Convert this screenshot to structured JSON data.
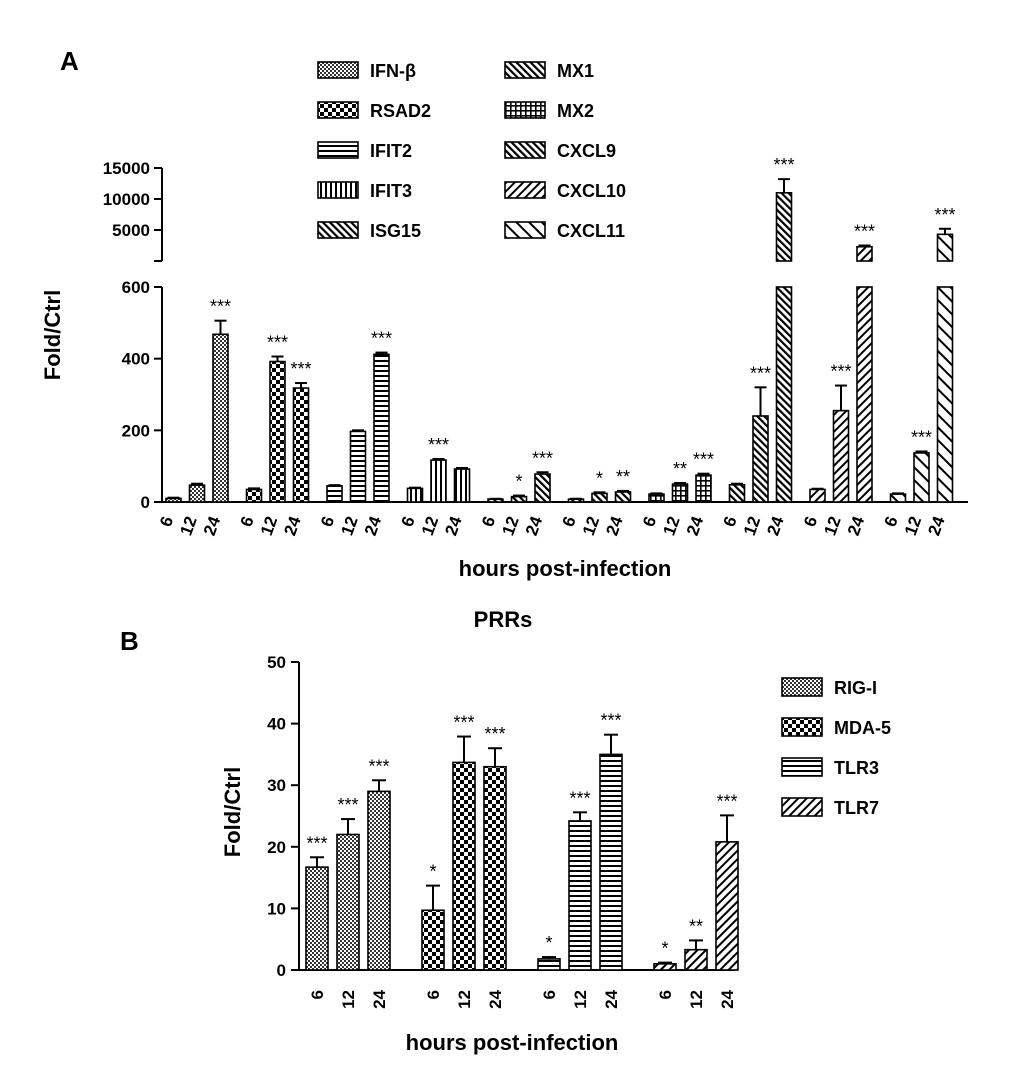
{
  "chart_data": [
    {
      "panel": "A",
      "type": "bar",
      "title": "",
      "xlabel": "hours post-infection",
      "ylabel": "Fold/Ctrl",
      "broken_axis": true,
      "ylim_lower": [
        0,
        600
      ],
      "yticks_lower": [
        0,
        200,
        400,
        600
      ],
      "ylim_upper": [
        0,
        15000
      ],
      "yticks_upper": [
        5000,
        10000,
        15000
      ],
      "timepoints": [
        "6",
        "12",
        "24"
      ],
      "legend_position": "top",
      "groups": [
        {
          "name": "IFN-β",
          "pattern": "checker",
          "values": [
            10,
            47,
            468
          ],
          "errors": [
            2,
            4,
            38
          ],
          "sig": [
            "",
            "",
            "***"
          ]
        },
        {
          "name": "RSAD2",
          "pattern": "bigcheck",
          "values": [
            35,
            392,
            318
          ],
          "errors": [
            3,
            14,
            14
          ],
          "sig": [
            "",
            "***",
            "***"
          ]
        },
        {
          "name": "IFIT2",
          "pattern": "hlines",
          "values": [
            45,
            197,
            412
          ],
          "errors": [
            2,
            3,
            5
          ],
          "sig": [
            "",
            "",
            "***"
          ]
        },
        {
          "name": "IFIT3",
          "pattern": "vlines",
          "values": [
            38,
            117,
            92
          ],
          "errors": [
            2,
            3,
            3
          ],
          "sig": [
            "",
            "***",
            ""
          ]
        },
        {
          "name": "ISG15",
          "pattern": "diag",
          "values": [
            8,
            15,
            78
          ],
          "errors": [
            1,
            3,
            5
          ],
          "sig": [
            "",
            "*",
            "***"
          ]
        },
        {
          "name": "MX1",
          "pattern": "diag",
          "values": [
            8,
            24,
            28
          ],
          "errors": [
            1,
            3,
            3
          ],
          "sig": [
            "",
            "*",
            "**"
          ]
        },
        {
          "name": "MX2",
          "pattern": "grid",
          "values": [
            22,
            50,
            75
          ],
          "errors": [
            2,
            3,
            4
          ],
          "sig": [
            "",
            "**",
            "***"
          ]
        },
        {
          "name": "CXCL9",
          "pattern": "diag",
          "values": [
            48,
            240,
            11000
          ],
          "errors": [
            3,
            80,
            2200
          ],
          "sig": [
            "",
            "***",
            "***"
          ]
        },
        {
          "name": "CXCL10",
          "pattern": "backdiag",
          "values": [
            35,
            255,
            2300
          ],
          "errors": [
            2,
            70,
            200
          ],
          "sig": [
            "",
            "***",
            "***"
          ]
        },
        {
          "name": "CXCL11",
          "pattern": "diagwide",
          "values": [
            22,
            137,
            4300
          ],
          "errors": [
            2,
            4,
            900
          ],
          "sig": [
            "",
            "***",
            "***"
          ]
        }
      ]
    },
    {
      "panel": "B",
      "type": "bar",
      "title": "PRRs",
      "xlabel": "hours post-infection",
      "ylabel": "Fold/Ctrl",
      "ylim": [
        0,
        50
      ],
      "yticks": [
        0,
        10,
        20,
        30,
        40,
        50
      ],
      "timepoints": [
        "6",
        "12",
        "24"
      ],
      "legend_position": "right",
      "groups": [
        {
          "name": "RIG-I",
          "pattern": "checker",
          "values": [
            16.7,
            22.0,
            29.0
          ],
          "errors": [
            1.6,
            2.5,
            1.8
          ],
          "sig": [
            "***",
            "***",
            "***"
          ]
        },
        {
          "name": "MDA-5",
          "pattern": "bigcheck",
          "values": [
            9.7,
            33.7,
            33.0
          ],
          "errors": [
            4.0,
            4.2,
            3.0
          ],
          "sig": [
            "*",
            "***",
            "***"
          ]
        },
        {
          "name": "TLR3",
          "pattern": "hlines",
          "values": [
            1.8,
            24.2,
            35.0
          ],
          "errors": [
            0.3,
            1.4,
            3.2
          ],
          "sig": [
            "*",
            "***",
            "***"
          ]
        },
        {
          "name": "TLR7",
          "pattern": "backdiag",
          "values": [
            1.0,
            3.3,
            20.8
          ],
          "errors": [
            0.2,
            1.5,
            4.3
          ],
          "sig": [
            "*",
            "**",
            "***"
          ]
        }
      ]
    }
  ]
}
